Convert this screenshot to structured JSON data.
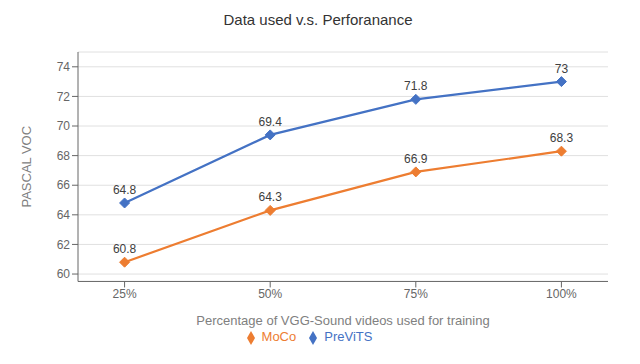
{
  "chart_data": {
    "type": "line",
    "title": "Data used v.s. Perforanance",
    "xlabel": "Percentage of VGG-Sound videos used for training",
    "ylabel": "PASCAL VOC",
    "x": [
      25,
      50,
      75,
      100
    ],
    "xlim": [
      17,
      108
    ],
    "xticks": [
      {
        "value": 25,
        "label": "25%"
      },
      {
        "value": 50,
        "label": "50%"
      },
      {
        "value": 75,
        "label": "75%"
      },
      {
        "value": 100,
        "label": "100%"
      }
    ],
    "ylim": [
      59.5,
      75.0
    ],
    "yticks": [
      60,
      62,
      64,
      66,
      68,
      70,
      72,
      74
    ],
    "series": [
      {
        "name": "PreViTS",
        "color": "#4472C4",
        "marker": "diamond",
        "values": [
          64.8,
          69.4,
          71.8,
          73.0
        ]
      },
      {
        "name": "MoCo",
        "color": "#ED7D31",
        "marker": "diamond",
        "values": [
          60.8,
          64.3,
          66.9,
          68.3
        ]
      }
    ],
    "grid": "y",
    "legend": "bottom",
    "data_labels": true
  }
}
